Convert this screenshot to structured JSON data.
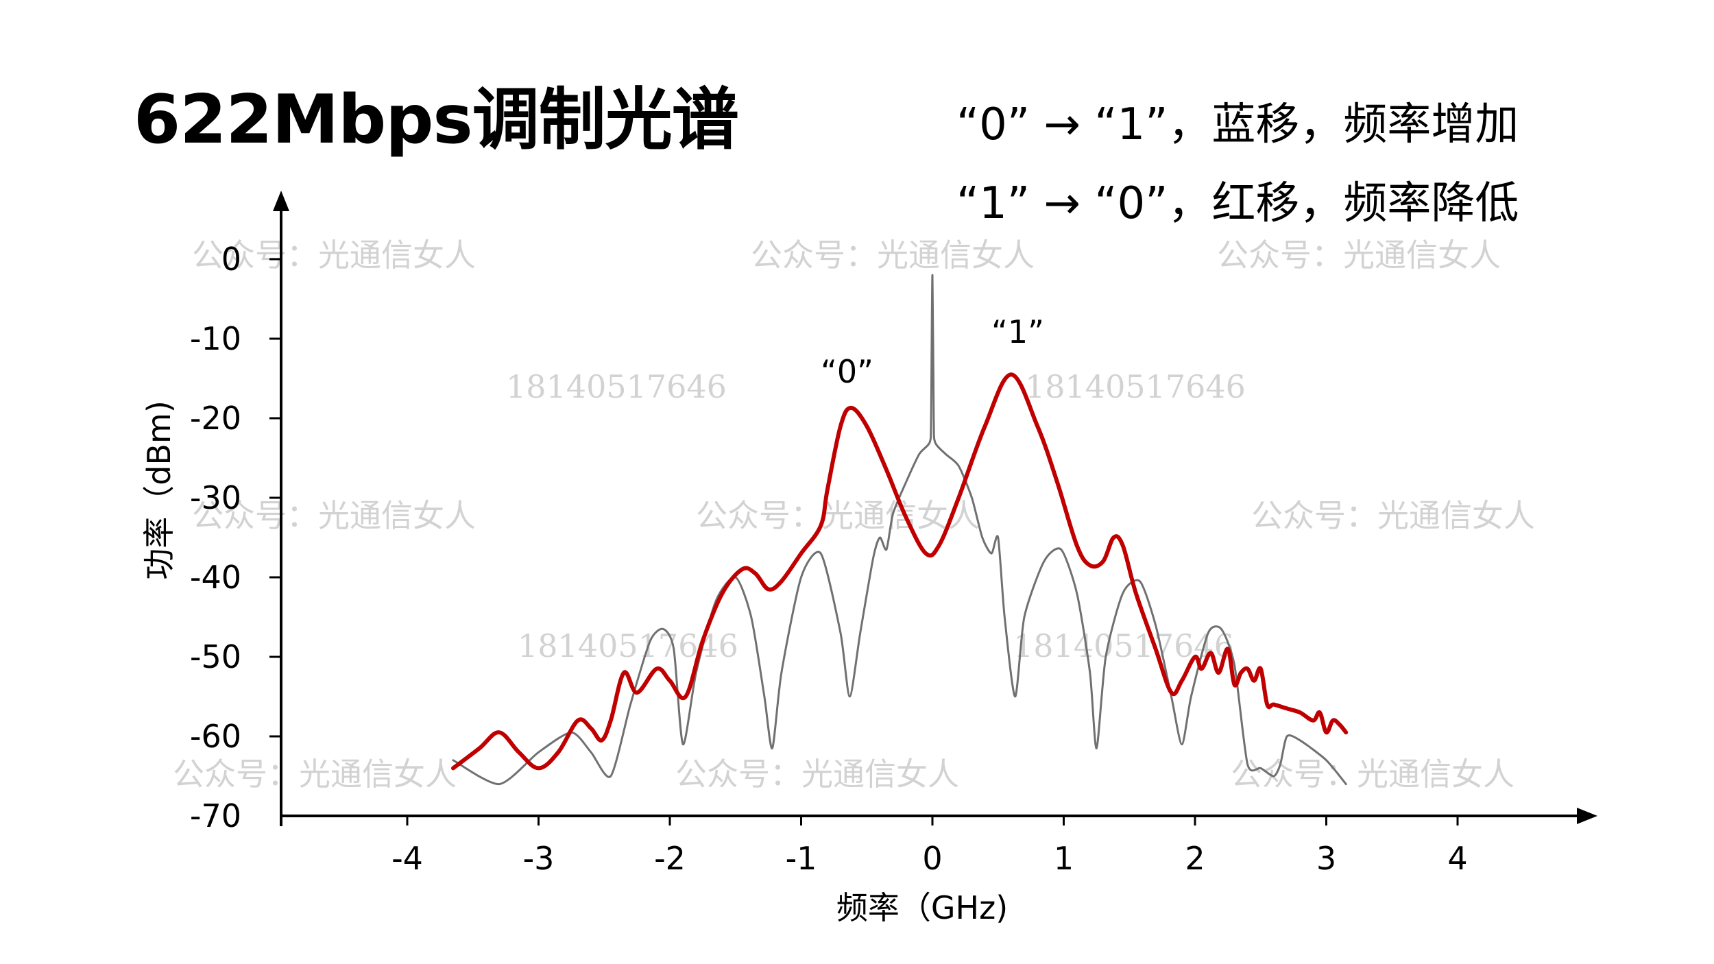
{
  "title": "622Mbps调制光谱",
  "notes": [
    "“0” → “1”，蓝移，频率增加",
    "“1” → “0”，红移，频率降低"
  ],
  "watermarks": [
    "公众号：光通信女人",
    "公众号：光通信女人",
    "公众号：光通信女人",
    "18140517646",
    "18140517646",
    "公众号：光通信女人",
    "公众号：光通信女人",
    "公众号：光通信女人",
    "18140517646",
    "18140517646",
    "公众号：光通信女人",
    "公众号：光通信女人",
    "公众号：光通信女人"
  ],
  "chart_data": {
    "type": "line",
    "xlabel": "频率（GHz)",
    "ylabel": "功率（dBm)",
    "xlim": [
      -5,
      5
    ],
    "ylim": [
      -70,
      0
    ],
    "xticks": [
      -4,
      -3,
      -2,
      -1,
      0,
      1,
      2,
      3,
      4
    ],
    "yticks": [
      0,
      -10,
      -20,
      -30,
      -40,
      -50,
      -60,
      -70
    ],
    "xtick_labels": [
      "-4",
      "-3",
      "-2",
      "-1",
      "0",
      "1",
      "2",
      "3",
      "4"
    ],
    "ytick_labels": [
      "0",
      "-10",
      "-20",
      "-30",
      "-40",
      "-50",
      "-60",
      "-70"
    ],
    "colors": {
      "modulated": "#c00000",
      "reference": "#707070",
      "axis": "#000000"
    },
    "annotations": [
      {
        "text": "“0”",
        "x": -0.65,
        "y": -15.5
      },
      {
        "text": "“1”",
        "x": 0.65,
        "y": -10.5
      }
    ],
    "series": [
      {
        "style": "thick-red",
        "x": [
          -3.65,
          -3.45,
          -3.3,
          -3.15,
          -3.0,
          -2.85,
          -2.7,
          -2.6,
          -2.52,
          -2.45,
          -2.35,
          -2.25,
          -2.1,
          -2.0,
          -1.88,
          -1.75,
          -1.6,
          -1.45,
          -1.35,
          -1.25,
          -1.15,
          -1.0,
          -0.85,
          -0.8,
          -0.7,
          -0.62,
          -0.5,
          -0.35,
          -0.2,
          -0.05,
          0.05,
          0.2,
          0.4,
          0.6,
          0.8,
          0.95,
          1.1,
          1.2,
          1.3,
          1.38,
          1.45,
          1.55,
          1.7,
          1.82,
          1.9,
          2.0,
          2.05,
          2.12,
          2.18,
          2.25,
          2.3,
          2.35,
          2.4,
          2.45,
          2.5,
          2.55,
          2.6,
          2.7,
          2.8,
          2.9,
          2.95,
          3.0,
          3.05,
          3.1,
          3.15
        ],
        "values": [
          -64,
          -61.5,
          -59.5,
          -62,
          -64,
          -62,
          -58,
          -59,
          -60.5,
          -58,
          -52,
          -54.5,
          -51.5,
          -53,
          -55,
          -48,
          -42,
          -39,
          -39.5,
          -41.5,
          -40.5,
          -37,
          -33.5,
          -29,
          -21,
          -18.7,
          -21,
          -26.5,
          -32.5,
          -37,
          -36,
          -30,
          -21,
          -14.5,
          -21,
          -28,
          -36,
          -38.5,
          -38,
          -35,
          -36,
          -42,
          -49,
          -54.5,
          -53,
          -50,
          -51.5,
          -49.5,
          -52,
          -49,
          -53.5,
          -52,
          -51.5,
          -53,
          -51.5,
          -56,
          -56,
          -56.5,
          -57,
          -58,
          -57,
          -59.5,
          -58,
          -58.5,
          -59.5
        ]
      },
      {
        "style": "thin-gray",
        "x": [
          -3.65,
          -3.3,
          -3.0,
          -2.75,
          -2.6,
          -2.45,
          -2.3,
          -2.15,
          -2.05,
          -1.97,
          -1.9,
          -1.8,
          -1.65,
          -1.5,
          -1.38,
          -1.28,
          -1.22,
          -1.15,
          -1.0,
          -0.85,
          -0.7,
          -0.63,
          -0.55,
          -0.45,
          -0.4,
          -0.35,
          -0.3,
          -0.2,
          -0.1,
          -0.02,
          -0.01,
          0.0,
          0.01,
          0.02,
          0.1,
          0.2,
          0.3,
          0.38,
          0.45,
          0.5,
          0.55,
          0.63,
          0.7,
          0.85,
          0.98,
          1.1,
          1.2,
          1.25,
          1.32,
          1.45,
          1.58,
          1.7,
          1.82,
          1.9,
          1.97,
          2.1,
          2.2,
          2.3,
          2.4,
          2.5,
          2.6,
          2.65,
          2.7,
          2.8,
          3.0,
          3.15
        ],
        "values": [
          -63,
          -66,
          -62,
          -59.5,
          -62,
          -65,
          -56,
          -48,
          -46.5,
          -49,
          -61,
          -52,
          -43,
          -40,
          -45,
          -55,
          -61.5,
          -52,
          -40,
          -37,
          -47,
          -55,
          -47,
          -37.5,
          -35,
          -36.5,
          -32,
          -28,
          -24.5,
          -23,
          -20,
          -2,
          -20,
          -23,
          -24.5,
          -26,
          -30,
          -35,
          -37,
          -35,
          -45,
          -55,
          -45,
          -38,
          -36.5,
          -42,
          -52,
          -61.5,
          -50,
          -42,
          -40.5,
          -46,
          -55,
          -61,
          -55,
          -47,
          -46.5,
          -51,
          -63.5,
          -64,
          -65,
          -63.5,
          -60,
          -60.5,
          -63,
          -66
        ]
      }
    ]
  }
}
